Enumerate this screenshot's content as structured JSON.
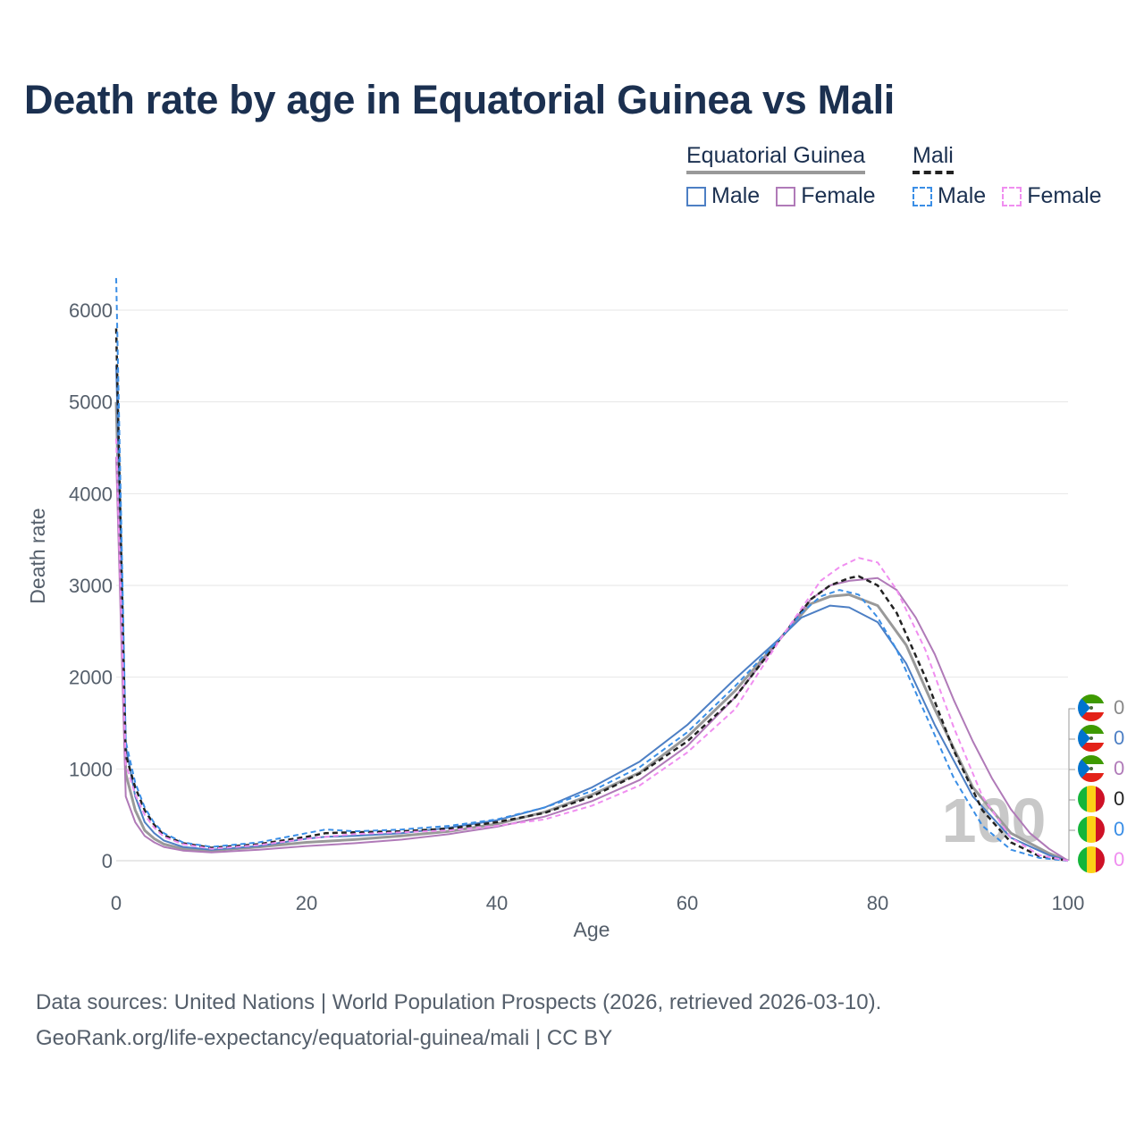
{
  "title": "Death rate by age in Equatorial Guinea vs Mali",
  "legend": {
    "groups": [
      {
        "name": "Equatorial Guinea",
        "header_color": "#999999",
        "header_style": "solid",
        "items": [
          {
            "label": "Male",
            "color": "#4d7fc4",
            "style": "solid"
          },
          {
            "label": "Female",
            "color": "#b07ab8",
            "style": "solid"
          }
        ]
      },
      {
        "name": "Mali",
        "header_color": "#222222",
        "header_style": "dashed",
        "items": [
          {
            "label": "Male",
            "color": "#3a8ee6",
            "style": "dashed"
          },
          {
            "label": "Female",
            "color": "#f08ef0",
            "style": "dashed"
          }
        ]
      }
    ]
  },
  "age_watermark": "100",
  "end_labels": [
    {
      "flag": "equatorial-guinea-flag",
      "value": "0",
      "color": "#888888"
    },
    {
      "flag": "equatorial-guinea-flag",
      "value": "0",
      "color": "#4d7fc4"
    },
    {
      "flag": "equatorial-guinea-flag",
      "value": "0",
      "color": "#b07ab8"
    },
    {
      "flag": "mali-flag",
      "value": "0",
      "color": "#222222"
    },
    {
      "flag": "mali-flag",
      "value": "0",
      "color": "#3a8ee6"
    },
    {
      "flag": "mali-flag",
      "value": "0",
      "color": "#f08ef0"
    }
  ],
  "footer": {
    "source": "Data sources: United Nations | World Population Prospects (2026, retrieved 2026-03-10).",
    "link": "GeoRank.org/life-expectancy/equatorial-guinea/mali | CC BY"
  },
  "chart_data": {
    "type": "line",
    "xlabel": "Age",
    "ylabel": "Death rate",
    "xlim": [
      0,
      100
    ],
    "ylim": [
      0,
      6300
    ],
    "xticks": [
      0,
      20,
      40,
      60,
      80,
      100
    ],
    "yticks": [
      0,
      1000,
      2000,
      3000,
      4000,
      5000,
      6000
    ],
    "grid": true,
    "series": [
      {
        "name": "Equatorial Guinea (total)",
        "color": "#999999",
        "style": "solid",
        "width": 3,
        "x": [
          0,
          1,
          2,
          3,
          4,
          5,
          7,
          10,
          15,
          20,
          25,
          30,
          35,
          40,
          45,
          50,
          55,
          60,
          65,
          70,
          73,
          75,
          77,
          80,
          83,
          86,
          90,
          94,
          98,
          100
        ],
        "y": [
          5000,
          950,
          550,
          330,
          240,
          180,
          130,
          110,
          150,
          200,
          230,
          270,
          320,
          400,
          530,
          720,
          960,
          1350,
          1850,
          2450,
          2800,
          2880,
          2900,
          2780,
          2350,
          1650,
          800,
          300,
          80,
          0
        ]
      },
      {
        "name": "Equatorial Guinea Male",
        "color": "#4d7fc4",
        "style": "solid",
        "width": 2,
        "x": [
          0,
          1,
          2,
          3,
          4,
          5,
          7,
          10,
          15,
          20,
          22,
          25,
          30,
          35,
          40,
          45,
          50,
          55,
          60,
          65,
          70,
          72,
          75,
          77,
          80,
          83,
          86,
          90,
          94,
          98,
          100
        ],
        "y": [
          5400,
          1250,
          700,
          420,
          300,
          220,
          150,
          120,
          160,
          240,
          260,
          270,
          300,
          360,
          440,
          580,
          800,
          1080,
          1480,
          1980,
          2450,
          2650,
          2780,
          2760,
          2600,
          2150,
          1480,
          700,
          250,
          60,
          0
        ]
      },
      {
        "name": "Equatorial Guinea Female",
        "color": "#b07ab8",
        "style": "solid",
        "width": 2,
        "x": [
          0,
          1,
          2,
          3,
          4,
          5,
          7,
          10,
          15,
          20,
          25,
          30,
          35,
          40,
          45,
          50,
          55,
          60,
          65,
          70,
          73,
          75,
          77,
          80,
          82,
          84,
          86,
          88,
          90,
          92,
          94,
          96,
          98,
          100
        ],
        "y": [
          4400,
          700,
          420,
          270,
          200,
          150,
          110,
          90,
          120,
          160,
          190,
          230,
          290,
          370,
          480,
          650,
          880,
          1250,
          1780,
          2450,
          2850,
          3000,
          3050,
          3080,
          2950,
          2650,
          2250,
          1750,
          1300,
          900,
          560,
          300,
          130,
          0
        ]
      },
      {
        "name": "Mali (total)",
        "color": "#222222",
        "style": "dashed",
        "width": 2.5,
        "x": [
          0,
          1,
          2,
          3,
          4,
          5,
          7,
          10,
          15,
          20,
          22,
          25,
          30,
          35,
          40,
          45,
          50,
          55,
          60,
          65,
          70,
          73,
          75,
          77,
          78,
          80,
          82,
          85,
          88,
          91,
          94,
          97,
          100
        ],
        "y": [
          5800,
          1150,
          800,
          550,
          390,
          280,
          190,
          140,
          180,
          260,
          300,
          310,
          320,
          350,
          420,
          520,
          700,
          950,
          1300,
          1780,
          2450,
          2850,
          3000,
          3080,
          3100,
          3000,
          2700,
          2000,
          1200,
          550,
          200,
          50,
          0
        ]
      },
      {
        "name": "Mali Male",
        "color": "#3a8ee6",
        "style": "dashed",
        "width": 2,
        "x": [
          0,
          1,
          2,
          3,
          4,
          5,
          7,
          10,
          15,
          20,
          22,
          25,
          30,
          35,
          40,
          45,
          50,
          55,
          60,
          65,
          70,
          72,
          74,
          76,
          78,
          80,
          82,
          85,
          88,
          91,
          94,
          97,
          100
        ],
        "y": [
          6350,
          1300,
          850,
          580,
          410,
          300,
          200,
          150,
          200,
          300,
          340,
          320,
          340,
          380,
          450,
          580,
          760,
          1020,
          1400,
          1900,
          2450,
          2700,
          2880,
          2950,
          2900,
          2650,
          2300,
          1600,
          900,
          380,
          120,
          30,
          0
        ]
      },
      {
        "name": "Mali Female",
        "color": "#f08ef0",
        "style": "dashed",
        "width": 2,
        "x": [
          0,
          1,
          2,
          3,
          4,
          5,
          7,
          10,
          15,
          20,
          25,
          30,
          35,
          40,
          45,
          50,
          55,
          60,
          65,
          70,
          72,
          74,
          76,
          78,
          80,
          82,
          85,
          88,
          91,
          94,
          97,
          100
        ],
        "y": [
          4600,
          1050,
          720,
          500,
          360,
          260,
          180,
          130,
          170,
          240,
          290,
          310,
          330,
          380,
          450,
          600,
          820,
          1180,
          1650,
          2450,
          2750,
          3050,
          3200,
          3300,
          3250,
          2950,
          2300,
          1450,
          700,
          250,
          60,
          0
        ]
      }
    ]
  }
}
